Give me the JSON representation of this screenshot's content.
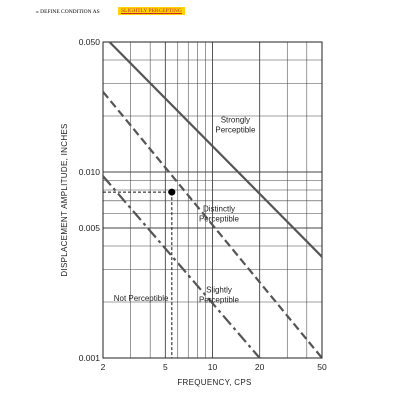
{
  "header": {
    "define_label": "» DEFINE CONDITION  AS",
    "condition_value": "SLIGHTLY PERCEPTING",
    "highlight_color": "#ffd400",
    "value_text_color": "#c62828"
  },
  "chart_data": {
    "type": "line",
    "title": "",
    "xlabel": "FREQUENCY,  CPS",
    "ylabel": "DISPLACEMENT AMPLITUDE, INCHES",
    "xscale": "log",
    "yscale": "log",
    "xlim": [
      2,
      50
    ],
    "ylim": [
      0.001,
      0.05
    ],
    "grid": true,
    "x_tick_labels": [
      {
        "value": 2,
        "label": "2"
      },
      {
        "value": 5,
        "label": "5"
      },
      {
        "value": 10,
        "label": "10"
      },
      {
        "value": 20,
        "label": "20"
      },
      {
        "value": 50,
        "label": "50"
      }
    ],
    "y_tick_labels": [
      {
        "value": 0.001,
        "label": "0.001"
      },
      {
        "value": 0.005,
        "label": "0.005"
      },
      {
        "value": 0.01,
        "label": "0.010"
      },
      {
        "value": 0.05,
        "label": "0.050"
      }
    ],
    "boundaries": [
      {
        "style": "solid",
        "x": [
          2.2,
          50
        ],
        "y": [
          0.05,
          0.0035
        ]
      },
      {
        "style": "dashed",
        "x": [
          2.0,
          50
        ],
        "y": [
          0.027,
          0.001
        ]
      },
      {
        "style": "dashdot",
        "x": [
          2.0,
          20
        ],
        "y": [
          0.0095,
          0.001
        ]
      }
    ],
    "regions": [
      {
        "lines": [
          "Strongly",
          "Perceptible"
        ],
        "x": 14,
        "y": 0.018
      },
      {
        "lines": [
          "Distinctly",
          "Perceptible"
        ],
        "x": 11,
        "y": 0.006
      },
      {
        "lines": [
          "Slightly",
          "Perceptible"
        ],
        "x": 11,
        "y": 0.0022
      },
      {
        "lines": [
          "Not Perceptible"
        ],
        "x": 3.5,
        "y": 0.0021
      }
    ],
    "marker": {
      "x": 5.5,
      "y": 0.0078
    }
  }
}
